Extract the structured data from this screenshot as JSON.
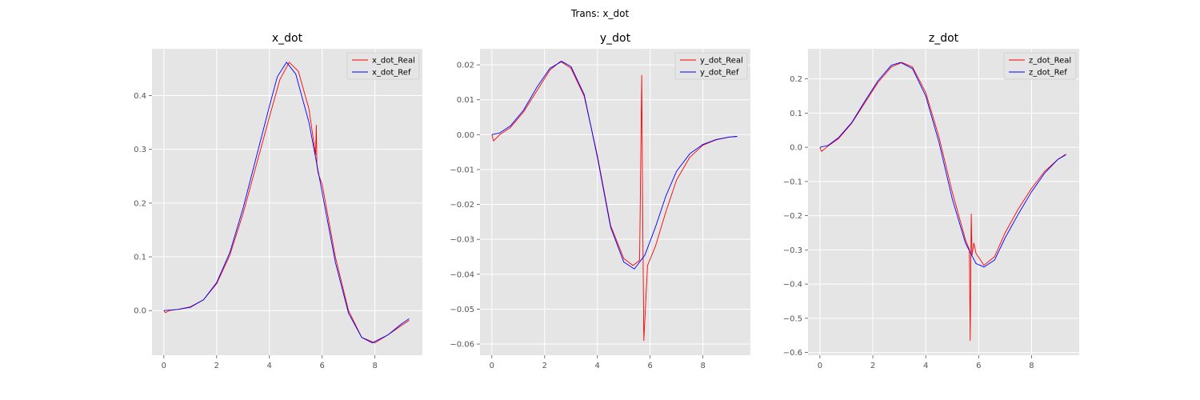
{
  "figure": {
    "suptitle": "Trans: x_dot"
  },
  "colors": {
    "real": "#ff0000",
    "ref": "#0000ff",
    "axes_bg": "#e5e5e5",
    "grid": "#ffffff"
  },
  "chart_data": [
    {
      "type": "line",
      "title": "x_dot",
      "xlim": [
        -0.45,
        9.8
      ],
      "ylim": [
        -0.083,
        0.487
      ],
      "xticks": [
        0,
        2,
        4,
        6,
        8
      ],
      "yticks": [
        0.0,
        0.1,
        0.2,
        0.3,
        0.4
      ],
      "ytick_labels": [
        "0.0",
        "0.1",
        "0.2",
        "0.3",
        "0.4"
      ],
      "grid": true,
      "legend": "top-right",
      "series": [
        {
          "name": "x_dot_Real",
          "color": "#ff0000",
          "x": [
            0,
            0.06,
            0.2,
            0.5,
            1,
            1.5,
            2,
            2.5,
            3,
            3.5,
            4,
            4.4,
            4.75,
            5.1,
            5.5,
            5.75,
            5.78,
            5.8,
            5.85,
            6,
            6.5,
            7,
            7.5,
            8,
            8.5,
            9,
            9.3
          ],
          "y": [
            0,
            -0.004,
            0,
            0.002,
            0.007,
            0.02,
            0.05,
            0.103,
            0.18,
            0.27,
            0.36,
            0.43,
            0.462,
            0.445,
            0.375,
            0.29,
            0.345,
            0.27,
            0.255,
            0.235,
            0.1,
            0.0,
            -0.05,
            -0.06,
            -0.045,
            -0.028,
            -0.018
          ]
        },
        {
          "name": "x_dot_Ref",
          "color": "#0000ff",
          "x": [
            0,
            0.5,
            1,
            1.5,
            2,
            2.5,
            3,
            3.5,
            4,
            4.3,
            4.65,
            5,
            5.5,
            6,
            6.5,
            7,
            7.5,
            7.9,
            8.5,
            9,
            9.3
          ],
          "y": [
            0,
            0.002,
            0.006,
            0.02,
            0.052,
            0.108,
            0.19,
            0.285,
            0.38,
            0.435,
            0.462,
            0.44,
            0.35,
            0.22,
            0.09,
            -0.005,
            -0.05,
            -0.06,
            -0.045,
            -0.025,
            -0.015
          ]
        }
      ]
    },
    {
      "type": "line",
      "title": "y_dot",
      "xlim": [
        -0.45,
        9.8
      ],
      "ylim": [
        -0.0632,
        0.0246
      ],
      "xticks": [
        0,
        2,
        4,
        6,
        8
      ],
      "yticks": [
        0.02,
        0.01,
        0.0,
        -0.01,
        -0.02,
        -0.03,
        -0.04,
        -0.05,
        -0.06
      ],
      "ytick_labels": [
        "0.02",
        "0.01",
        "0.00",
        "−0.01",
        "−0.02",
        "−0.03",
        "−0.04",
        "−0.05",
        "−0.06"
      ],
      "grid": true,
      "legend": "top-right",
      "series": [
        {
          "name": "y_dot_Real",
          "color": "#ff0000",
          "x": [
            0,
            0.06,
            0.3,
            0.7,
            1.2,
            1.7,
            2.2,
            2.6,
            3,
            3.5,
            4,
            4.5,
            5,
            5.35,
            5.6,
            5.68,
            5.72,
            5.76,
            5.9,
            6.2,
            6.6,
            7,
            7.5,
            8,
            8.5,
            9,
            9.3
          ],
          "y": [
            0,
            -0.0018,
            0,
            0.002,
            0.0065,
            0.0125,
            0.0185,
            0.021,
            0.019,
            0.011,
            -0.006,
            -0.026,
            -0.0355,
            -0.0375,
            -0.036,
            0.017,
            -0.025,
            -0.059,
            -0.0375,
            -0.032,
            -0.022,
            -0.013,
            -0.0065,
            -0.003,
            -0.0015,
            -0.0007,
            -0.0005
          ]
        },
        {
          "name": "y_dot_Ref",
          "color": "#0000ff",
          "x": [
            0,
            0.3,
            0.7,
            1.2,
            1.7,
            2.2,
            2.65,
            3,
            3.5,
            4,
            4.5,
            5,
            5.4,
            5.8,
            6.2,
            6.6,
            7,
            7.5,
            8,
            8.5,
            9,
            9.3
          ],
          "y": [
            0,
            0.0005,
            0.0025,
            0.007,
            0.0135,
            0.019,
            0.021,
            0.0195,
            0.0115,
            -0.0065,
            -0.0265,
            -0.0365,
            -0.0385,
            -0.0345,
            -0.0265,
            -0.0175,
            -0.0105,
            -0.0055,
            -0.0028,
            -0.0014,
            -0.0007,
            -0.0005
          ]
        }
      ]
    },
    {
      "type": "line",
      "title": "z_dot",
      "xlim": [
        -0.45,
        9.8
      ],
      "ylim": [
        -0.608,
        0.288
      ],
      "xticks": [
        0,
        2,
        4,
        6,
        8
      ],
      "yticks": [
        0.2,
        0.1,
        0.0,
        -0.1,
        -0.2,
        -0.3,
        -0.4,
        -0.5,
        -0.6
      ],
      "ytick_labels": [
        "0.2",
        "0.1",
        "0.0",
        "−0.1",
        "−0.2",
        "−0.3",
        "−0.4",
        "−0.5",
        "−0.6"
      ],
      "grid": true,
      "legend": "top-right",
      "series": [
        {
          "name": "z_dot_Real",
          "color": "#ff0000",
          "x": [
            0,
            0.06,
            0.3,
            0.7,
            1.2,
            1.7,
            2.2,
            2.7,
            3.1,
            3.5,
            4,
            4.5,
            5,
            5.5,
            5.65,
            5.68,
            5.72,
            5.75,
            5.82,
            5.9,
            6.2,
            6.6,
            7,
            7.5,
            8,
            8.5,
            9,
            9.3
          ],
          "y": [
            0,
            -0.012,
            0.003,
            0.025,
            0.07,
            0.13,
            0.19,
            0.235,
            0.248,
            0.235,
            0.16,
            0.03,
            -0.13,
            -0.27,
            -0.3,
            -0.565,
            -0.195,
            -0.315,
            -0.28,
            -0.31,
            -0.345,
            -0.32,
            -0.25,
            -0.18,
            -0.12,
            -0.07,
            -0.035,
            -0.02
          ]
        },
        {
          "name": "z_dot_Ref",
          "color": "#0000ff",
          "x": [
            0,
            0.3,
            0.7,
            1.2,
            1.7,
            2.2,
            2.7,
            3.05,
            3.5,
            4,
            4.5,
            5,
            5.5,
            5.9,
            6.2,
            6.6,
            7,
            7.5,
            8,
            8.5,
            9,
            9.3
          ],
          "y": [
            0,
            0.005,
            0.028,
            0.072,
            0.135,
            0.195,
            0.24,
            0.248,
            0.23,
            0.15,
            0.015,
            -0.15,
            -0.28,
            -0.34,
            -0.35,
            -0.33,
            -0.265,
            -0.195,
            -0.13,
            -0.075,
            -0.035,
            -0.022
          ]
        }
      ]
    }
  ]
}
